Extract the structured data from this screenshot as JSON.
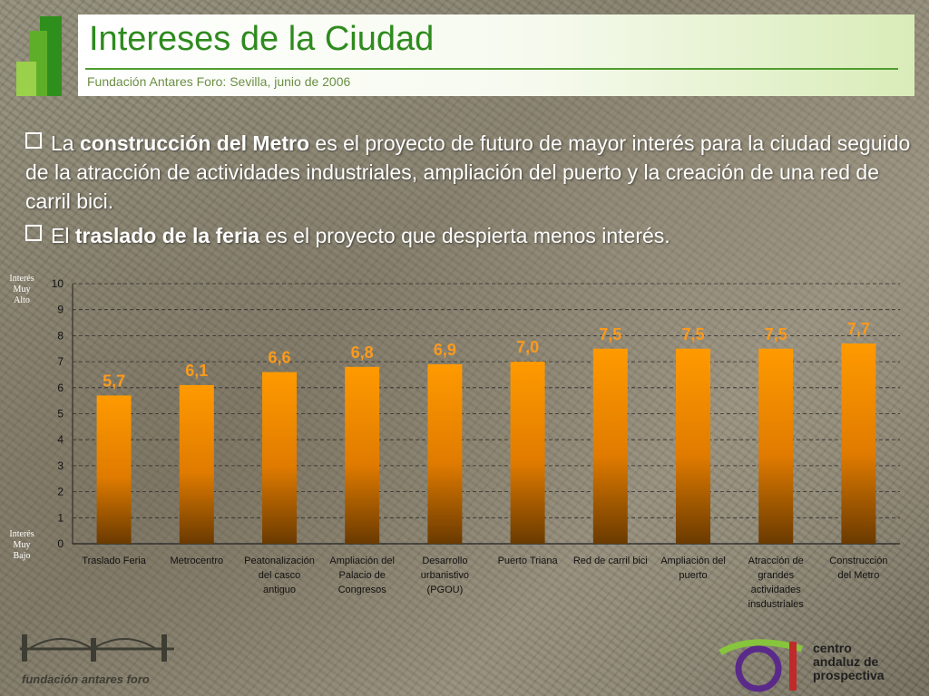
{
  "header": {
    "title": "Intereses de la Ciudad",
    "subtitle": "Fundación Antares Foro: Sevilla, junio de 2006"
  },
  "bullets": [
    {
      "before": "La ",
      "bold": "construcción del Metro",
      "after": " es el proyecto de futuro de mayor interés para la ciudad seguido de la atracción de actividades industriales, ampliación del puerto y la creación de una red de carril bici."
    },
    {
      "before": "El ",
      "bold": "traslado de la feria",
      "after": " es el proyecto que despierta menos interés."
    }
  ],
  "axis_side_labels": {
    "top": "Interés Muy Alto",
    "bottom": "Interés Muy Bajo"
  },
  "chart_data": {
    "type": "bar",
    "categories": [
      "Traslado Feria",
      "Metrocentro",
      "Peatonalización del casco antiguo",
      "Ampliación del Palacio de Congresos",
      "Desarrollo urbanistivo (PGOU)",
      "Puerto Triana",
      "Red de carril bici",
      "Ampliación del puerto",
      "Atracción de grandes actividades insdustriales",
      "Construcción del Metro"
    ],
    "category_lines": [
      [
        "Traslado Feria"
      ],
      [
        "Metrocentro"
      ],
      [
        "Peatonalización",
        "del casco",
        "antiguo"
      ],
      [
        "Ampliación del",
        "Palacio de",
        "Congresos"
      ],
      [
        "Desarrollo",
        "urbanistivo",
        "(PGOU)"
      ],
      [
        "Puerto Triana"
      ],
      [
        "Red de carril bici"
      ],
      [
        "Ampliación del",
        "puerto"
      ],
      [
        "Atracción de",
        "grandes",
        "actividades",
        "insdustriales"
      ],
      [
        "Construcción",
        "del Metro"
      ]
    ],
    "values": [
      5.7,
      6.1,
      6.6,
      6.8,
      6.9,
      7.0,
      7.5,
      7.5,
      7.5,
      7.7
    ],
    "data_labels": [
      "5,7",
      "6,1",
      "6,6",
      "6,8",
      "6,9",
      "7,0",
      "7,5",
      "7,5",
      "7,5",
      "7,7"
    ],
    "ylim": [
      0,
      10
    ],
    "yticks": [
      "0",
      "1",
      "2",
      "3",
      "4",
      "5",
      "6",
      "7",
      "8",
      "9",
      "10"
    ],
    "grid": true,
    "bar_color_top": "#ff9a00",
    "bar_color_bottom": "#6a3a00",
    "label_color": "#ff9a1a"
  },
  "footer": {
    "left_brand": "fundación antares foro",
    "right_brand": [
      "centro",
      "andaluz de",
      "prospectiva"
    ]
  },
  "colors": {
    "title": "#2e8a1e",
    "logo_green": "#2f8f1c",
    "logo_light": "#86c53c",
    "logo_purple": "#5a2a8a"
  }
}
